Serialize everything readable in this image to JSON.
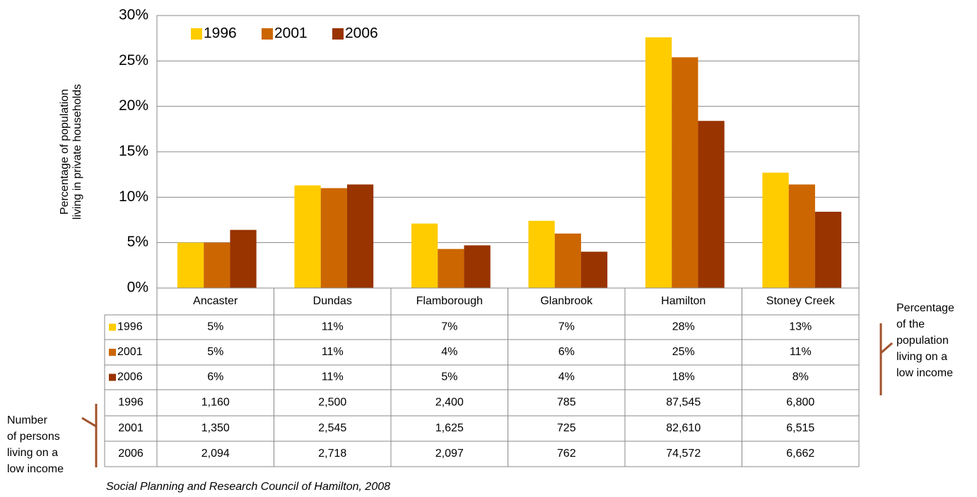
{
  "chart_data": {
    "type": "bar",
    "y_label_lines": [
      "Percentage of population",
      "living in private households"
    ],
    "categories": [
      "Ancaster",
      "Dundas",
      "Flamborough",
      "Glanbrook",
      "Hamilton",
      "Stoney Creek"
    ],
    "series": [
      {
        "name": "1996",
        "color": "#ffcc00",
        "values": [
          5.0,
          11.3,
          7.1,
          7.4,
          27.6,
          12.7
        ],
        "value_labels": [
          "5%",
          "11%",
          "7%",
          "7%",
          "28%",
          "13%"
        ]
      },
      {
        "name": "2001",
        "color": "#cc6600",
        "values": [
          5.0,
          11.0,
          4.3,
          6.0,
          25.4,
          11.4
        ],
        "value_labels": [
          "5%",
          "11%",
          "4%",
          "6%",
          "25%",
          "11%"
        ]
      },
      {
        "name": "2006",
        "color": "#993300",
        "values": [
          6.4,
          11.4,
          4.7,
          4.0,
          18.4,
          8.4
        ],
        "value_labels": [
          "6%",
          "11%",
          "5%",
          "4%",
          "18%",
          "8%"
        ]
      }
    ],
    "persons": [
      {
        "name": "1996",
        "values": [
          "1,160",
          "2,500",
          "2,400",
          "785",
          "87,545",
          "6,800"
        ]
      },
      {
        "name": "2001",
        "values": [
          "1,350",
          "2,545",
          "1,625",
          "725",
          "82,610",
          "6,515"
        ]
      },
      {
        "name": "2006",
        "values": [
          "2,094",
          "2,718",
          "2,097",
          "762",
          "74,572",
          "6,662"
        ]
      }
    ],
    "ylim": [
      0,
      30
    ],
    "yticks": [
      {
        "value": 0,
        "label": "0%"
      },
      {
        "value": 5,
        "label": "5%"
      },
      {
        "value": 10,
        "label": "10%"
      },
      {
        "value": 15,
        "label": "15%"
      },
      {
        "value": 20,
        "label": "20%"
      },
      {
        "value": 25,
        "label": "25%"
      },
      {
        "value": 30,
        "label": "30%"
      }
    ],
    "grid": true,
    "legend": "top-left",
    "annotations": [
      {
        "lines": [
          "Percentage",
          "of the",
          "population",
          "living on a",
          "low income"
        ]
      },
      {
        "lines": [
          "Number",
          "of persons",
          "living on a",
          "low income"
        ]
      }
    ],
    "source": "Social Planning and Research Council of Hamilton, 2008"
  }
}
